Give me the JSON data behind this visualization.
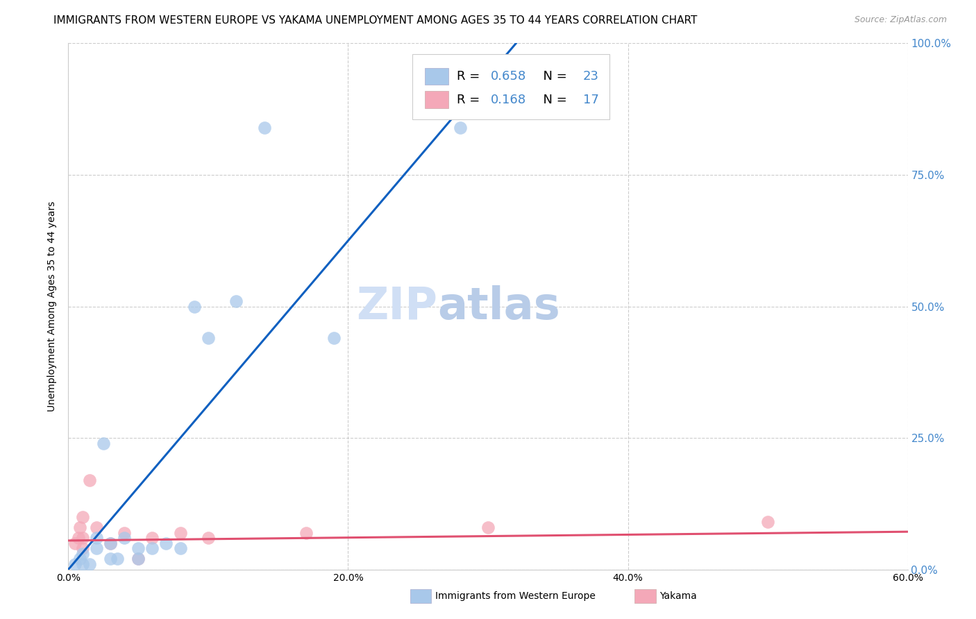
{
  "title": "IMMIGRANTS FROM WESTERN EUROPE VS YAKAMA UNEMPLOYMENT AMONG AGES 35 TO 44 YEARS CORRELATION CHART",
  "source": "Source: ZipAtlas.com",
  "ylabel": "Unemployment Among Ages 35 to 44 years",
  "watermark_zip": "ZIP",
  "watermark_atlas": "atlas",
  "xlim": [
    0.0,
    0.6
  ],
  "ylim": [
    0.0,
    1.0
  ],
  "xtick_labels": [
    "0.0%",
    "20.0%",
    "40.0%",
    "60.0%"
  ],
  "xtick_vals": [
    0.0,
    0.2,
    0.4,
    0.6
  ],
  "ytick_labels": [
    "0.0%",
    "25.0%",
    "50.0%",
    "75.0%",
    "100.0%"
  ],
  "ytick_vals": [
    0.0,
    0.25,
    0.5,
    0.75,
    1.0
  ],
  "blue_scatter_x": [
    0.005,
    0.008,
    0.01,
    0.01,
    0.015,
    0.02,
    0.02,
    0.025,
    0.03,
    0.03,
    0.035,
    0.04,
    0.05,
    0.05,
    0.06,
    0.07,
    0.08,
    0.09,
    0.1,
    0.12,
    0.14,
    0.19,
    0.28
  ],
  "blue_scatter_y": [
    0.01,
    0.02,
    0.01,
    0.03,
    0.01,
    0.06,
    0.04,
    0.24,
    0.05,
    0.02,
    0.02,
    0.06,
    0.04,
    0.02,
    0.04,
    0.05,
    0.04,
    0.5,
    0.44,
    0.51,
    0.84,
    0.44,
    0.84
  ],
  "pink_scatter_x": [
    0.005,
    0.007,
    0.008,
    0.01,
    0.01,
    0.01,
    0.015,
    0.02,
    0.03,
    0.04,
    0.05,
    0.06,
    0.08,
    0.1,
    0.17,
    0.3,
    0.5
  ],
  "pink_scatter_y": [
    0.05,
    0.06,
    0.08,
    0.04,
    0.06,
    0.1,
    0.17,
    0.08,
    0.05,
    0.07,
    0.02,
    0.06,
    0.07,
    0.06,
    0.07,
    0.08,
    0.09
  ],
  "blue_R": 0.658,
  "blue_N": 23,
  "pink_R": 0.168,
  "pink_N": 17,
  "blue_color": "#a8c8ea",
  "pink_color": "#f4a8b8",
  "blue_line_color": "#1060c0",
  "pink_line_color": "#e05070",
  "blue_line_x0": 0.0,
  "blue_line_y0": 0.0,
  "blue_line_x1": 0.32,
  "blue_line_y1": 1.0,
  "pink_line_x0": 0.0,
  "pink_line_x1": 0.6,
  "pink_line_slope": 0.028,
  "pink_line_intercept": 0.055,
  "right_axis_color": "#4488cc",
  "title_fontsize": 11,
  "axis_label_fontsize": 10,
  "tick_fontsize": 10,
  "source_fontsize": 9,
  "watermark_fontsize_zip": 46,
  "watermark_fontsize_atlas": 46
}
